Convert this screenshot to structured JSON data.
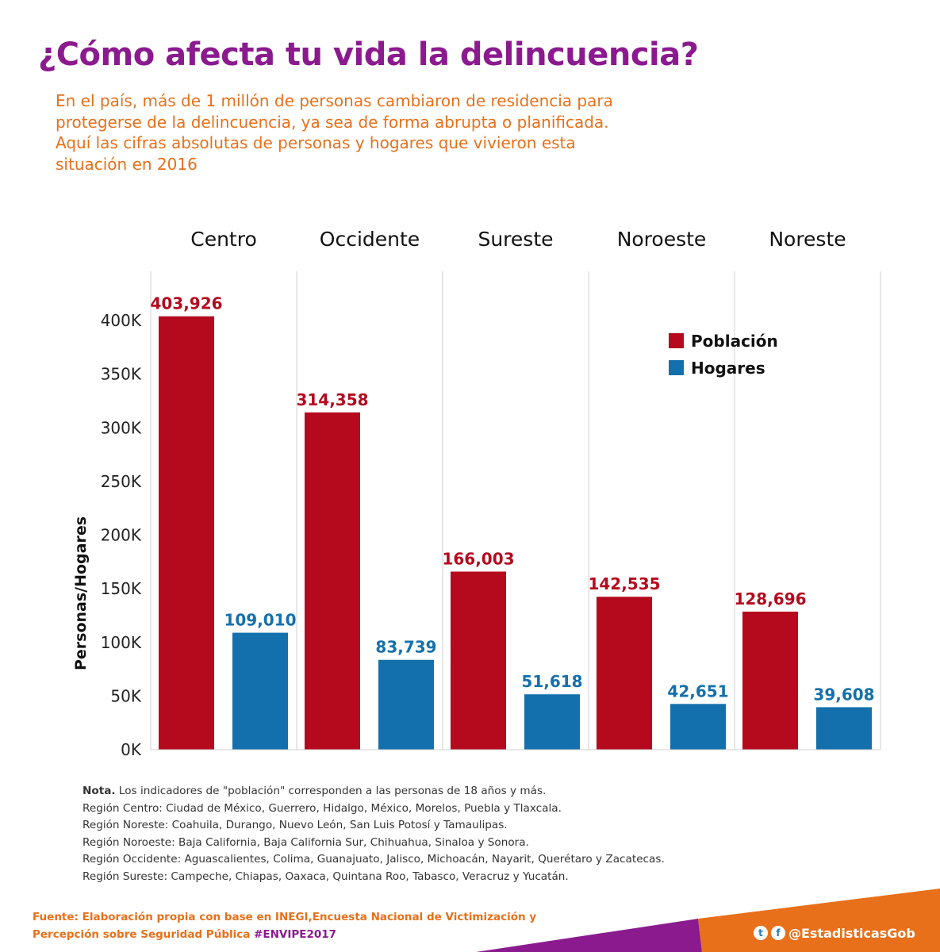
{
  "title": "¿Cómo afecta tu vida la delincuencia?",
  "subtitle_lines": [
    "En el país, más de 1 millón de personas cambiaron de residencia para",
    "protegerse de la delincuencia, ya sea de forma abrupta o planificada.",
    "Aquí las cifras absolutas de personas y hogares que vivieron esta",
    "situación en 2016"
  ],
  "chart_data": {
    "type": "bar",
    "categories": [
      "Centro",
      "Occidente",
      "Sureste",
      "Noroeste",
      "Noreste"
    ],
    "series": [
      {
        "name": "Población",
        "color": "#B50A1E",
        "values": [
          403926,
          314358,
          166003,
          142535,
          128696
        ],
        "labels": [
          "403,926",
          "314,358",
          "166,003",
          "142,535",
          "128,696"
        ]
      },
      {
        "name": "Hogares",
        "color": "#1470AC",
        "values": [
          109010,
          83739,
          51618,
          42651,
          39608
        ],
        "labels": [
          "109,010",
          "83,739",
          "51,618",
          "42,651",
          "39,608"
        ]
      }
    ],
    "ylabel": "Personas/Hogares",
    "ylim": [
      0,
      430000
    ],
    "yticks": [
      0,
      50000,
      100000,
      150000,
      200000,
      250000,
      300000,
      350000,
      400000
    ],
    "ytick_labels": [
      "0K",
      "50K",
      "100K",
      "150K",
      "200K",
      "250K",
      "300K",
      "350K",
      "400K"
    ],
    "legend_position": "top-right",
    "grid": false
  },
  "notes": {
    "label": "Nota.",
    "first": " Los indicadores de \"población\" corresponden a las personas de 18 años y más.",
    "lines": [
      "Región Centro: Ciudad de México,  Guerrero, Hidalgo,  México, Morelos, Puebla y Tlaxcala.",
      "Región Noreste: Coahuila, Durango, Nuevo León, San Luis Potosí y Tamaulipas.",
      "Región Noroeste: Baja California, Baja California Sur, Chihuahua,  Sinaloa y Sonora.",
      "Región Occidente: Aguascalientes, Colima, Guanajuato, Jalisco, Michoacán, Nayarit, Querétaro y Zacatecas.",
      "Región Sureste: Campeche, Chiapas,  Oaxaca, Quintana Roo, Tabasco, Veracruz y Yucatán."
    ]
  },
  "source": {
    "line1": "Fuente: Elaboración propia con base en INEGI,Encuesta Nacional de Victimización y",
    "line2": "Percepción sobre Seguridad Pública ",
    "hashtag": "#ENVIPE2017"
  },
  "social": {
    "handle": "@EstadisticasGob",
    "twitter_icon": "twitter-icon",
    "facebook_icon": "facebook-icon"
  },
  "colors": {
    "title": "#8B1A8F",
    "subtitle": "#E8701A",
    "poblacion": "#B50A1E",
    "hogares": "#1470AC",
    "footer_orange": "#E8701A",
    "footer_purple": "#8B1A8F"
  }
}
